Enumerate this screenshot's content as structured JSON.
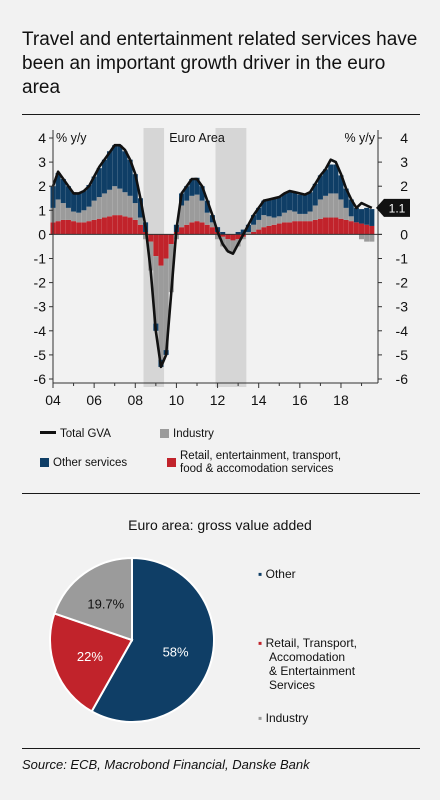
{
  "header": {
    "title": "Travel and entertainment related services have been an important growth driver in the euro area"
  },
  "colors": {
    "total": "#111111",
    "industry": "#9b9b9b",
    "other": "#0f3e66",
    "retail": "#c1232b",
    "recession": "#d6d6d6",
    "background": "#f2f2f2"
  },
  "chart_data": [
    {
      "type": "area",
      "title": "Euro Area",
      "ylabel_left": "% y/y",
      "ylabel_right": "% y/y",
      "ylim": [
        -6,
        4
      ],
      "yticks": [
        "4",
        "3",
        "2",
        "1",
        "0",
        "-1",
        "-2",
        "-3",
        "-4",
        "-5",
        "-6"
      ],
      "xlim": [
        2004,
        2019.8
      ],
      "xtick_labels": [
        "04",
        "06",
        "08",
        "10",
        "12",
        "14",
        "16",
        "18"
      ],
      "grid": false,
      "shaded_periods": [
        [
          2008.4,
          2009.4
        ],
        [
          2011.9,
          2013.4
        ]
      ],
      "last_value_label": "1.1",
      "x": [
        2004.0,
        2004.25,
        2004.5,
        2004.75,
        2005.0,
        2005.25,
        2005.5,
        2005.75,
        2006.0,
        2006.25,
        2006.5,
        2006.75,
        2007.0,
        2007.25,
        2007.5,
        2007.75,
        2008.0,
        2008.25,
        2008.5,
        2008.75,
        2009.0,
        2009.25,
        2009.5,
        2009.75,
        2010.0,
        2010.25,
        2010.5,
        2010.75,
        2011.0,
        2011.25,
        2011.5,
        2011.75,
        2012.0,
        2012.25,
        2012.5,
        2012.75,
        2013.0,
        2013.25,
        2013.5,
        2013.75,
        2014.0,
        2014.25,
        2014.5,
        2014.75,
        2015.0,
        2015.25,
        2015.5,
        2015.75,
        2016.0,
        2016.25,
        2016.5,
        2016.75,
        2017.0,
        2017.25,
        2017.5,
        2017.75,
        2018.0,
        2018.25,
        2018.5,
        2018.75,
        2019.0,
        2019.25,
        2019.5
      ],
      "series": [
        {
          "name": "Retail, entertainment, transport, food & accomodation services",
          "values": [
            0.5,
            0.55,
            0.6,
            0.6,
            0.55,
            0.5,
            0.5,
            0.55,
            0.6,
            0.65,
            0.7,
            0.75,
            0.8,
            0.8,
            0.75,
            0.7,
            0.6,
            0.4,
            0.1,
            -0.3,
            -0.9,
            -1.3,
            -1.0,
            -0.4,
            0.1,
            0.3,
            0.4,
            0.5,
            0.55,
            0.5,
            0.4,
            0.3,
            0.1,
            -0.1,
            -0.2,
            -0.25,
            -0.2,
            -0.1,
            0.0,
            0.1,
            0.2,
            0.3,
            0.35,
            0.4,
            0.45,
            0.5,
            0.5,
            0.55,
            0.55,
            0.55,
            0.55,
            0.6,
            0.65,
            0.7,
            0.7,
            0.7,
            0.65,
            0.6,
            0.55,
            0.5,
            0.45,
            0.4,
            0.35
          ]
        },
        {
          "name": "Industry",
          "values": [
            0.6,
            0.9,
            0.7,
            0.5,
            0.4,
            0.4,
            0.5,
            0.6,
            0.8,
            0.9,
            1.0,
            1.1,
            1.2,
            1.1,
            1.0,
            0.9,
            0.7,
            0.3,
            -0.2,
            -1.2,
            -2.8,
            -3.9,
            -3.8,
            -2.0,
            -0.2,
            0.9,
            1.0,
            1.1,
            1.1,
            0.9,
            0.5,
            0.2,
            -0.2,
            -0.4,
            -0.5,
            -0.5,
            -0.3,
            -0.1,
            0.1,
            0.3,
            0.4,
            0.5,
            0.4,
            0.3,
            0.3,
            0.4,
            0.5,
            0.4,
            0.3,
            0.3,
            0.4,
            0.6,
            0.8,
            0.9,
            1.0,
            1.0,
            0.8,
            0.5,
            0.2,
            0.0,
            -0.2,
            -0.3,
            -0.3
          ]
        },
        {
          "name": "Other services",
          "values": [
            0.9,
            1.1,
            1.0,
            0.9,
            0.8,
            0.8,
            0.8,
            0.9,
            1.0,
            1.2,
            1.4,
            1.6,
            1.7,
            1.8,
            1.7,
            1.5,
            1.2,
            0.8,
            0.4,
            0.0,
            -0.3,
            -0.3,
            -0.2,
            0.0,
            0.3,
            0.5,
            0.6,
            0.7,
            0.7,
            0.6,
            0.5,
            0.3,
            0.2,
            0.1,
            0.0,
            0.0,
            0.1,
            0.2,
            0.3,
            0.4,
            0.5,
            0.6,
            0.7,
            0.8,
            0.8,
            0.8,
            0.8,
            0.8,
            0.8,
            0.8,
            0.8,
            0.9,
            1.0,
            1.1,
            1.2,
            1.2,
            1.0,
            0.8,
            0.7,
            0.6,
            0.6,
            0.7,
            0.7
          ]
        },
        {
          "name": "Total GVA",
          "values": [
            2.0,
            2.6,
            2.3,
            2.0,
            1.7,
            1.7,
            1.8,
            2.0,
            2.4,
            2.8,
            3.1,
            3.4,
            3.7,
            3.7,
            3.5,
            3.1,
            2.5,
            1.5,
            0.3,
            -1.5,
            -4.0,
            -5.5,
            -5.0,
            -2.4,
            0.2,
            1.7,
            2.0,
            2.3,
            2.3,
            2.0,
            1.4,
            0.8,
            0.1,
            -0.4,
            -0.7,
            -0.8,
            -0.4,
            0.0,
            0.4,
            0.8,
            1.1,
            1.4,
            1.45,
            1.5,
            1.55,
            1.7,
            1.8,
            1.75,
            1.7,
            1.65,
            1.75,
            2.1,
            2.45,
            2.7,
            3.1,
            3.0,
            2.5,
            1.9,
            1.45,
            1.1,
            1.3,
            1.2,
            1.1
          ]
        }
      ],
      "legend": [
        {
          "name": "Total GVA",
          "marker": "line"
        },
        {
          "name": "Industry",
          "marker": "square"
        },
        {
          "name": "Other services",
          "marker": "square"
        },
        {
          "name": "Retail, entertainment, transport, food & accomodation services",
          "marker": "square"
        }
      ]
    },
    {
      "type": "pie",
      "title": "Euro area: gross value added",
      "slices": [
        {
          "name": "Other",
          "value": 58,
          "label": "58%"
        },
        {
          "name": "Retail, Transport, Accomodation & Entertainment Services",
          "value": 22,
          "label": "22%"
        },
        {
          "name": "Industry",
          "value": 19.7,
          "label": "19.7%"
        }
      ]
    }
  ],
  "legend_text": {
    "total": "Total GVA",
    "industry": "Industry",
    "other": "Other services",
    "retail_line1": "Retail, entertainment, transport,",
    "retail_line2": "food & accomodation services"
  },
  "pie_legend": {
    "other": "Other",
    "retail_lines": [
      "Retail, Transport,",
      "Accomodation",
      "& Entertainment",
      "Services"
    ],
    "industry": "Industry"
  },
  "footer": {
    "source": "Source: ECB, Macrobond Financial, Danske Bank"
  }
}
